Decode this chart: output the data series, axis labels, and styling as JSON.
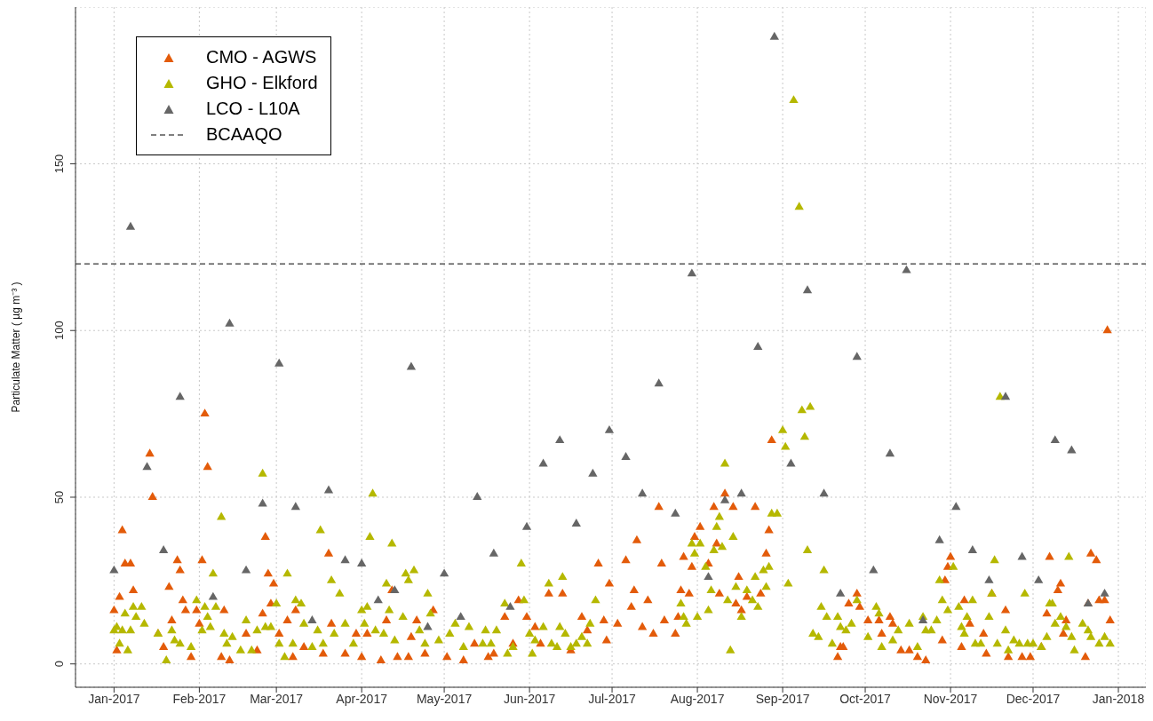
{
  "chart_data": {
    "type": "scatter",
    "ylabel": "Particulate Matter ( µg m⁻³ )",
    "marker": "triangle",
    "grid": true,
    "legend": "top left",
    "xlim": [
      "2016-12-18",
      "2018-01-11"
    ],
    "ylim": [
      -7,
      197
    ],
    "yticks": [
      0,
      50,
      100,
      150
    ],
    "xticks": [
      {
        "value": "2017-01-01",
        "label": "Jan-2017"
      },
      {
        "value": "2017-02-01",
        "label": "Feb-2017"
      },
      {
        "value": "2017-03-01",
        "label": "Mar-2017"
      },
      {
        "value": "2017-04-01",
        "label": "Apr-2017"
      },
      {
        "value": "2017-05-01",
        "label": "May-2017"
      },
      {
        "value": "2017-06-01",
        "label": "Jun-2017"
      },
      {
        "value": "2017-07-01",
        "label": "Jul-2017"
      },
      {
        "value": "2017-08-01",
        "label": "Aug-2017"
      },
      {
        "value": "2017-09-01",
        "label": "Sep-2017"
      },
      {
        "value": "2017-10-01",
        "label": "Oct-2017"
      },
      {
        "value": "2017-11-01",
        "label": "Nov-2017"
      },
      {
        "value": "2017-12-01",
        "label": "Dec-2017"
      },
      {
        "value": "2018-01-01",
        "label": "Jan-2018"
      }
    ],
    "ref_lines": [
      {
        "axis": "y",
        "value": 120,
        "label": "BCAAQO",
        "color": "#000000",
        "line_style": "dashed"
      }
    ],
    "series": [
      {
        "name": "CMO - AGWS",
        "color": "#e35b0a",
        "x": [
          "2017-01-01",
          "2017-01-02",
          "2017-01-03",
          "2017-01-04",
          "2017-01-05",
          "2017-01-07",
          "2017-01-08",
          "2017-01-14",
          "2017-01-15",
          "2017-01-17",
          "2017-01-19",
          "2017-01-21",
          "2017-01-22",
          "2017-01-24",
          "2017-01-25",
          "2017-01-26",
          "2017-01-27",
          "2017-01-29",
          "2017-01-31",
          "2017-02-01",
          "2017-02-02",
          "2017-02-03",
          "2017-02-04",
          "2017-02-09",
          "2017-02-10",
          "2017-02-12",
          "2017-02-18",
          "2017-02-22",
          "2017-02-24",
          "2017-02-25",
          "2017-02-26",
          "2017-02-27",
          "2017-02-28",
          "2017-03-02",
          "2017-03-05",
          "2017-03-07",
          "2017-03-08",
          "2017-03-11",
          "2017-03-18",
          "2017-03-20",
          "2017-03-21",
          "2017-03-26",
          "2017-03-30",
          "2017-04-01",
          "2017-04-03",
          "2017-04-08",
          "2017-04-10",
          "2017-04-12",
          "2017-04-14",
          "2017-04-18",
          "2017-04-19",
          "2017-04-21",
          "2017-04-24",
          "2017-04-27",
          "2017-05-02",
          "2017-05-08",
          "2017-05-12",
          "2017-05-17",
          "2017-05-19",
          "2017-05-23",
          "2017-05-26",
          "2017-05-28",
          "2017-05-31",
          "2017-06-03",
          "2017-06-05",
          "2017-06-08",
          "2017-06-13",
          "2017-06-16",
          "2017-06-20",
          "2017-06-22",
          "2017-06-26",
          "2017-06-28",
          "2017-06-29",
          "2017-06-30",
          "2017-07-03",
          "2017-07-06",
          "2017-07-08",
          "2017-07-09",
          "2017-07-10",
          "2017-07-12",
          "2017-07-14",
          "2017-07-16",
          "2017-07-18",
          "2017-07-19",
          "2017-07-20",
          "2017-07-24",
          "2017-07-25",
          "2017-07-26",
          "2017-07-27",
          "2017-07-29",
          "2017-07-30",
          "2017-07-31",
          "2017-08-02",
          "2017-08-05",
          "2017-08-07",
          "2017-08-08",
          "2017-08-09",
          "2017-08-11",
          "2017-08-14",
          "2017-08-15",
          "2017-08-16",
          "2017-08-17",
          "2017-08-19",
          "2017-08-22",
          "2017-08-24",
          "2017-08-26",
          "2017-08-27",
          "2017-08-28",
          "2017-09-21",
          "2017-09-22",
          "2017-09-23",
          "2017-09-25",
          "2017-09-28",
          "2017-09-29",
          "2017-10-02",
          "2017-10-06",
          "2017-10-07",
          "2017-10-10",
          "2017-10-11",
          "2017-10-14",
          "2017-10-17",
          "2017-10-20",
          "2017-10-23",
          "2017-10-29",
          "2017-10-30",
          "2017-10-31",
          "2017-11-01",
          "2017-11-05",
          "2017-11-06",
          "2017-11-08",
          "2017-11-13",
          "2017-11-14",
          "2017-11-16",
          "2017-11-21",
          "2017-11-22",
          "2017-11-27",
          "2017-11-30",
          "2017-12-04",
          "2017-12-06",
          "2017-12-07",
          "2017-12-10",
          "2017-12-11",
          "2017-12-12",
          "2017-12-13",
          "2017-12-20",
          "2017-12-21",
          "2017-12-22",
          "2017-12-24",
          "2017-12-25",
          "2017-12-27",
          "2017-12-28",
          "2017-12-29"
        ],
        "values": [
          16,
          4,
          20,
          40,
          30,
          30,
          22,
          63,
          50,
          9,
          5,
          23,
          13,
          31,
          28,
          19,
          16,
          2,
          16,
          12,
          31,
          75,
          59,
          2,
          16,
          1,
          9,
          4,
          15,
          38,
          27,
          18,
          24,
          9,
          13,
          2,
          16,
          5,
          3,
          33,
          12,
          3,
          9,
          2,
          9,
          1,
          13,
          22,
          2,
          2,
          8,
          13,
          3,
          16,
          2,
          1,
          6,
          2,
          3,
          14,
          6,
          19,
          14,
          11,
          6,
          21,
          21,
          4,
          14,
          10,
          30,
          13,
          7,
          24,
          12,
          31,
          17,
          22,
          37,
          11,
          19,
          9,
          47,
          30,
          13,
          9,
          14,
          22,
          32,
          21,
          29,
          38,
          41,
          30,
          47,
          36,
          21,
          51,
          47,
          18,
          26,
          16,
          20,
          47,
          21,
          33,
          40,
          67,
          2,
          5,
          5,
          18,
          21,
          17,
          13,
          13,
          9,
          14,
          12,
          4,
          4,
          2,
          1,
          7,
          25,
          29,
          32,
          5,
          19,
          12,
          9,
          3,
          21,
          16,
          2,
          2,
          2,
          5,
          15,
          32,
          22,
          24,
          9,
          13,
          2,
          18,
          33,
          31,
          19,
          19,
          100,
          13
        ]
      },
      {
        "name": "GHO - Elkford",
        "color": "#b5b800",
        "x": [
          "2017-01-01",
          "2017-01-02",
          "2017-01-03",
          "2017-01-04",
          "2017-01-05",
          "2017-01-06",
          "2017-01-07",
          "2017-01-08",
          "2017-01-09",
          "2017-01-11",
          "2017-01-12",
          "2017-01-17",
          "2017-01-20",
          "2017-01-22",
          "2017-01-23",
          "2017-01-25",
          "2017-01-29",
          "2017-01-31",
          "2017-02-02",
          "2017-02-03",
          "2017-02-04",
          "2017-02-05",
          "2017-02-06",
          "2017-02-07",
          "2017-02-09",
          "2017-02-10",
          "2017-02-11",
          "2017-02-13",
          "2017-02-16",
          "2017-02-18",
          "2017-02-20",
          "2017-02-22",
          "2017-02-24",
          "2017-02-25",
          "2017-02-27",
          "2017-03-01",
          "2017-03-02",
          "2017-03-04",
          "2017-03-05",
          "2017-03-07",
          "2017-03-08",
          "2017-03-10",
          "2017-03-11",
          "2017-03-14",
          "2017-03-16",
          "2017-03-17",
          "2017-03-18",
          "2017-03-21",
          "2017-03-22",
          "2017-03-24",
          "2017-03-26",
          "2017-03-29",
          "2017-04-01",
          "2017-04-02",
          "2017-04-03",
          "2017-04-04",
          "2017-04-05",
          "2017-04-06",
          "2017-04-09",
          "2017-04-10",
          "2017-04-11",
          "2017-04-12",
          "2017-04-13",
          "2017-04-16",
          "2017-04-17",
          "2017-04-18",
          "2017-04-20",
          "2017-04-22",
          "2017-04-24",
          "2017-04-25",
          "2017-04-26",
          "2017-04-29",
          "2017-05-03",
          "2017-05-05",
          "2017-05-08",
          "2017-05-10",
          "2017-05-15",
          "2017-05-16",
          "2017-05-18",
          "2017-05-20",
          "2017-05-23",
          "2017-05-24",
          "2017-05-26",
          "2017-05-29",
          "2017-05-30",
          "2017-06-01",
          "2017-06-02",
          "2017-06-03",
          "2017-06-06",
          "2017-06-08",
          "2017-06-09",
          "2017-06-11",
          "2017-06-12",
          "2017-06-13",
          "2017-06-14",
          "2017-06-16",
          "2017-06-18",
          "2017-06-20",
          "2017-06-22",
          "2017-06-23",
          "2017-06-25",
          "2017-07-26",
          "2017-07-27",
          "2017-07-28",
          "2017-07-30",
          "2017-07-31",
          "2017-08-01",
          "2017-08-02",
          "2017-08-04",
          "2017-08-05",
          "2017-08-06",
          "2017-08-07",
          "2017-08-08",
          "2017-08-09",
          "2017-08-10",
          "2017-08-11",
          "2017-08-12",
          "2017-08-13",
          "2017-08-14",
          "2017-08-15",
          "2017-08-17",
          "2017-08-19",
          "2017-08-21",
          "2017-08-22",
          "2017-08-23",
          "2017-08-25",
          "2017-08-26",
          "2017-08-27",
          "2017-08-28",
          "2017-08-30",
          "2017-09-01",
          "2017-09-02",
          "2017-09-03",
          "2017-09-05",
          "2017-09-07",
          "2017-09-08",
          "2017-09-09",
          "2017-09-10",
          "2017-09-11",
          "2017-09-12",
          "2017-09-14",
          "2017-09-15",
          "2017-09-16",
          "2017-09-17",
          "2017-09-19",
          "2017-09-21",
          "2017-09-22",
          "2017-09-24",
          "2017-09-26",
          "2017-09-28",
          "2017-10-02",
          "2017-10-05",
          "2017-10-06",
          "2017-10-07",
          "2017-10-11",
          "2017-10-13",
          "2017-10-17",
          "2017-10-20",
          "2017-10-22",
          "2017-10-23",
          "2017-10-25",
          "2017-10-27",
          "2017-10-28",
          "2017-10-29",
          "2017-10-31",
          "2017-11-02",
          "2017-11-04",
          "2017-11-05",
          "2017-11-06",
          "2017-11-07",
          "2017-11-09",
          "2017-11-10",
          "2017-11-12",
          "2017-11-15",
          "2017-11-16",
          "2017-11-17",
          "2017-11-18",
          "2017-11-19",
          "2017-11-21",
          "2017-11-22",
          "2017-11-24",
          "2017-11-26",
          "2017-11-28",
          "2017-11-29",
          "2017-12-01",
          "2017-12-04",
          "2017-12-06",
          "2017-12-07",
          "2017-12-08",
          "2017-12-09",
          "2017-12-11",
          "2017-12-13",
          "2017-12-14",
          "2017-12-15",
          "2017-12-16",
          "2017-12-19",
          "2017-12-21",
          "2017-12-22",
          "2017-12-25",
          "2017-12-27",
          "2017-12-29"
        ],
        "values": [
          10,
          11,
          6,
          10,
          15,
          4,
          10,
          17,
          14,
          17,
          12,
          9,
          1,
          10,
          7,
          6,
          5,
          19,
          10,
          17,
          14,
          11,
          27,
          17,
          44,
          9,
          6,
          8,
          4,
          13,
          4,
          10,
          57,
          11,
          11,
          18,
          6,
          2,
          27,
          6,
          19,
          18,
          12,
          5,
          10,
          40,
          6,
          25,
          9,
          21,
          12,
          6,
          16,
          12,
          17,
          38,
          51,
          10,
          9,
          24,
          16,
          36,
          7,
          14,
          27,
          25,
          28,
          10,
          6,
          21,
          15,
          7,
          9,
          12,
          5,
          11,
          6,
          10,
          6,
          10,
          18,
          3,
          5,
          30,
          19,
          9,
          3,
          7,
          11,
          24,
          6,
          5,
          11,
          26,
          9,
          5,
          6,
          8,
          6,
          12,
          19,
          18,
          14,
          12,
          36,
          33,
          14,
          36,
          29,
          16,
          22,
          34,
          41,
          44,
          35,
          60,
          19,
          4,
          38,
          23,
          14,
          22,
          19,
          26,
          17,
          28,
          23,
          29,
          45,
          45,
          70,
          65,
          24,
          169,
          137,
          76,
          68,
          34,
          77,
          9,
          8,
          17,
          28,
          14,
          6,
          14,
          11,
          10,
          12,
          19,
          8,
          17,
          15,
          5,
          7,
          10,
          12,
          5,
          14,
          10,
          10,
          13,
          25,
          19,
          16,
          29,
          17,
          11,
          9,
          14,
          19,
          6,
          6,
          14,
          21,
          31,
          6,
          80,
          10,
          4,
          7,
          6,
          21,
          6,
          6,
          5,
          8,
          18,
          18,
          12,
          14,
          11,
          32,
          8,
          4,
          12,
          10,
          8,
          6,
          8,
          6
        ]
      },
      {
        "name": "LCO - L10A",
        "color": "#666666",
        "x": [
          "2017-01-01",
          "2017-01-07",
          "2017-01-13",
          "2017-01-19",
          "2017-01-25",
          "2017-02-06",
          "2017-02-12",
          "2017-02-18",
          "2017-02-24",
          "2017-03-02",
          "2017-03-08",
          "2017-03-14",
          "2017-03-20",
          "2017-03-26",
          "2017-04-01",
          "2017-04-07",
          "2017-04-13",
          "2017-04-19",
          "2017-04-25",
          "2017-05-01",
          "2017-05-07",
          "2017-05-13",
          "2017-05-19",
          "2017-05-25",
          "2017-05-31",
          "2017-06-06",
          "2017-06-12",
          "2017-06-18",
          "2017-06-24",
          "2017-06-30",
          "2017-07-06",
          "2017-07-12",
          "2017-07-18",
          "2017-07-24",
          "2017-07-30",
          "2017-08-05",
          "2017-08-11",
          "2017-08-17",
          "2017-08-23",
          "2017-08-29",
          "2017-09-04",
          "2017-09-10",
          "2017-09-16",
          "2017-09-22",
          "2017-09-28",
          "2017-10-04",
          "2017-10-10",
          "2017-10-16",
          "2017-10-22",
          "2017-10-28",
          "2017-11-03",
          "2017-11-09",
          "2017-11-15",
          "2017-11-21",
          "2017-11-27",
          "2017-12-03",
          "2017-12-09",
          "2017-12-15",
          "2017-12-21",
          "2017-12-27"
        ],
        "values": [
          28,
          131,
          59,
          34,
          80,
          20,
          102,
          28,
          48,
          90,
          47,
          13,
          52,
          31,
          30,
          19,
          22,
          89,
          11,
          27,
          14,
          50,
          33,
          17,
          41,
          60,
          67,
          42,
          57,
          70,
          62,
          51,
          84,
          45,
          117,
          26,
          49,
          51,
          95,
          188,
          60,
          112,
          51,
          21,
          92,
          28,
          63,
          118,
          13,
          37,
          47,
          34,
          25,
          80,
          32,
          25,
          67,
          64,
          18,
          21
        ]
      }
    ]
  }
}
